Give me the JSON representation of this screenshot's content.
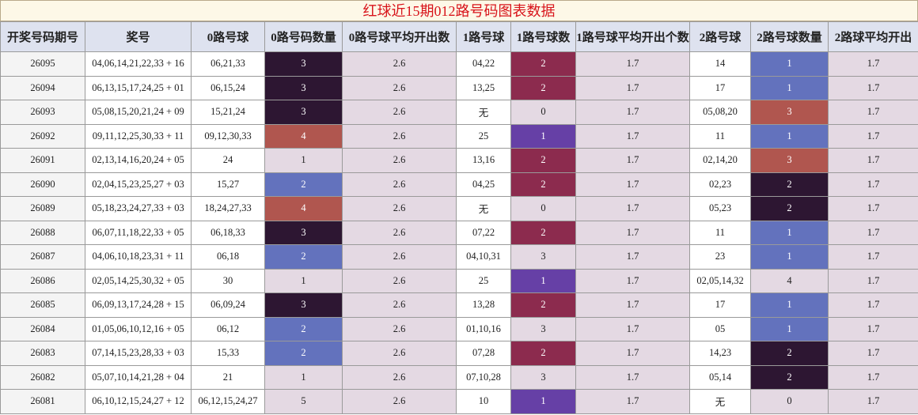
{
  "header": {
    "title": "红球近15期012路号码图表数据"
  },
  "table": {
    "columns": [
      "开奖号码期号",
      "奖号",
      "0路号球",
      "0路号码数量",
      "0路号球平均开出数",
      "1路号球",
      "1路号球数",
      "1路号球平均开出个数",
      "2路号球",
      "2路号球数量",
      "2路球平均开出"
    ],
    "rows": [
      [
        "26095",
        "04,06,14,21,22,33 + 16",
        "06,21,33",
        "3",
        "2.6",
        "04,22",
        "2",
        "1.7",
        "14",
        "1",
        "1.7"
      ],
      [
        "26094",
        "06,13,15,17,24,25 + 01",
        "06,15,24",
        "3",
        "2.6",
        "13,25",
        "2",
        "1.7",
        "17",
        "1",
        "1.7"
      ],
      [
        "26093",
        "05,08,15,20,21,24 + 09",
        "15,21,24",
        "3",
        "2.6",
        "无",
        "0",
        "1.7",
        "05,08,20",
        "3",
        "1.7"
      ],
      [
        "26092",
        "09,11,12,25,30,33 + 11",
        "09,12,30,33",
        "4",
        "2.6",
        "25",
        "1",
        "1.7",
        "11",
        "1",
        "1.7"
      ],
      [
        "26091",
        "02,13,14,16,20,24 + 05",
        "24",
        "1",
        "2.6",
        "13,16",
        "2",
        "1.7",
        "02,14,20",
        "3",
        "1.7"
      ],
      [
        "26090",
        "02,04,15,23,25,27 + 03",
        "15,27",
        "2",
        "2.6",
        "04,25",
        "2",
        "1.7",
        "02,23",
        "2",
        "1.7"
      ],
      [
        "26089",
        "05,18,23,24,27,33 + 03",
        "18,24,27,33",
        "4",
        "2.6",
        "无",
        "0",
        "1.7",
        "05,23",
        "2",
        "1.7"
      ],
      [
        "26088",
        "06,07,11,18,22,33 + 05",
        "06,18,33",
        "3",
        "2.6",
        "07,22",
        "2",
        "1.7",
        "11",
        "1",
        "1.7"
      ],
      [
        "26087",
        "04,06,10,18,23,31 + 11",
        "06,18",
        "2",
        "2.6",
        "04,10,31",
        "3",
        "1.7",
        "23",
        "1",
        "1.7"
      ],
      [
        "26086",
        "02,05,14,25,30,32 + 05",
        "30",
        "1",
        "2.6",
        "25",
        "1",
        "1.7",
        "02,05,14,32",
        "4",
        "1.7"
      ],
      [
        "26085",
        "06,09,13,17,24,28 + 15",
        "06,09,24",
        "3",
        "2.6",
        "13,28",
        "2",
        "1.7",
        "17",
        "1",
        "1.7"
      ],
      [
        "26084",
        "01,05,06,10,12,16 + 05",
        "06,12",
        "2",
        "2.6",
        "01,10,16",
        "3",
        "1.7",
        "05",
        "1",
        "1.7"
      ],
      [
        "26083",
        "07,14,15,23,28,33 + 03",
        "15,33",
        "2",
        "2.6",
        "07,28",
        "2",
        "1.7",
        "14,23",
        "2",
        "1.7"
      ],
      [
        "26082",
        "05,07,10,14,21,28 + 04",
        "21",
        "1",
        "2.6",
        "07,10,28",
        "3",
        "1.7",
        "05,14",
        "2",
        "1.7"
      ],
      [
        "26081",
        "06,10,12,15,24,27 + 12",
        "06,12,15,24,27",
        "5",
        "2.6",
        "10",
        "1",
        "1.7",
        "无",
        "0",
        "1.7"
      ]
    ],
    "count_colors": {
      "3": {
        "2": "#6372bd",
        "3": "#2d1632",
        "4": "#b0564f"
      },
      "6": {
        "1": "#6640a6",
        "2": "#8c2b4e"
      },
      "9": {
        "1": "#6372bd",
        "2": "#2d1632",
        "3": "#b0564f"
      }
    }
  }
}
